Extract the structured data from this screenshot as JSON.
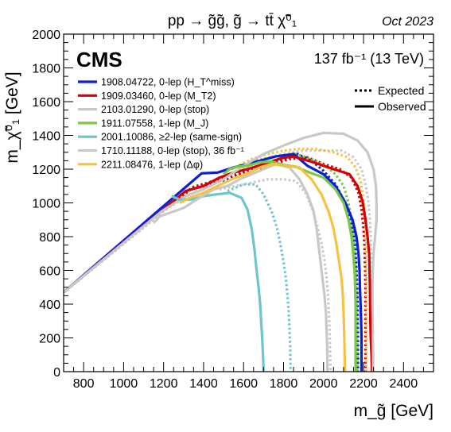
{
  "chart_data": {
    "type": "line",
    "title": "pp → g̃g̃,  g̃ → tt̄ χ̃⁰₁",
    "date_label": "Oct 2023",
    "experiment": "CMS",
    "luminosity": "137 fb⁻¹ (13 TeV)",
    "xlabel": "m_g̃ [GeV]",
    "ylabel": "m_χ̃⁰₁ [GeV]",
    "xlim": [
      700,
      2550
    ],
    "ylim": [
      0,
      2000
    ],
    "xticks": [
      800,
      1000,
      1200,
      1400,
      1600,
      1800,
      2000,
      2200,
      2400
    ],
    "yticks": [
      0,
      200,
      400,
      600,
      800,
      1000,
      1200,
      1400,
      1600,
      1800,
      2000
    ],
    "legend_style": [
      {
        "label": "Expected",
        "dash": "dotted"
      },
      {
        "label": "Observed",
        "dash": "solid"
      }
    ],
    "series": [
      {
        "name": "1908.04722, 0-lep (H_T^miss)",
        "color": "#0b1fd6",
        "observed": [
          [
            700,
            470
          ],
          [
            1390,
            1175
          ],
          [
            1470,
            1180
          ],
          [
            1550,
            1210
          ],
          [
            1650,
            1240
          ],
          [
            1760,
            1275
          ],
          [
            1850,
            1290
          ],
          [
            1920,
            1220
          ],
          [
            2000,
            1170
          ],
          [
            2060,
            1100
          ],
          [
            2110,
            1000
          ],
          [
            2145,
            900
          ],
          [
            2165,
            800
          ],
          [
            2175,
            700
          ],
          [
            2180,
            600
          ],
          [
            2182,
            500
          ],
          [
            2185,
            400
          ],
          [
            2188,
            300
          ],
          [
            2190,
            200
          ],
          [
            2190,
            100
          ],
          [
            2190,
            0
          ]
        ],
        "expected": [
          [
            700,
            470
          ],
          [
            1330,
            1080
          ],
          [
            1460,
            1120
          ],
          [
            1570,
            1160
          ],
          [
            1680,
            1220
          ],
          [
            1780,
            1250
          ],
          [
            1870,
            1290
          ],
          [
            1940,
            1250
          ],
          [
            2000,
            1190
          ],
          [
            2060,
            1110
          ],
          [
            2100,
            1020
          ],
          [
            2130,
            920
          ],
          [
            2150,
            820
          ],
          [
            2160,
            720
          ],
          [
            2165,
            600
          ],
          [
            2168,
            500
          ],
          [
            2170,
            400
          ],
          [
            2170,
            300
          ],
          [
            2172,
            200
          ],
          [
            2172,
            100
          ],
          [
            2172,
            0
          ]
        ]
      },
      {
        "name": "1909.03460, 0-lep (M_T2)",
        "color": "#d40000",
        "observed": [
          [
            700,
            470
          ],
          [
            1310,
            1070
          ],
          [
            1400,
            1100
          ],
          [
            1480,
            1150
          ],
          [
            1550,
            1180
          ],
          [
            1620,
            1200
          ],
          [
            1700,
            1230
          ],
          [
            1790,
            1265
          ],
          [
            1850,
            1275
          ],
          [
            1950,
            1240
          ],
          [
            2050,
            1200
          ],
          [
            2130,
            1170
          ],
          [
            2170,
            1100
          ],
          [
            2195,
            1010
          ],
          [
            2210,
            900
          ],
          [
            2220,
            800
          ],
          [
            2228,
            700
          ],
          [
            2230,
            600
          ],
          [
            2232,
            500
          ],
          [
            2233,
            400
          ],
          [
            2234,
            300
          ],
          [
            2236,
            200
          ],
          [
            2240,
            100
          ],
          [
            2242,
            0
          ]
        ],
        "expected": [
          [
            700,
            470
          ],
          [
            1350,
            1095
          ],
          [
            1480,
            1140
          ],
          [
            1600,
            1180
          ],
          [
            1720,
            1220
          ],
          [
            1830,
            1260
          ],
          [
            1920,
            1270
          ],
          [
            2000,
            1230
          ],
          [
            2080,
            1200
          ],
          [
            2140,
            1150
          ],
          [
            2175,
            1060
          ],
          [
            2190,
            960
          ],
          [
            2200,
            850
          ],
          [
            2205,
            740
          ],
          [
            2208,
            620
          ],
          [
            2210,
            500
          ],
          [
            2210,
            400
          ],
          [
            2210,
            300
          ],
          [
            2210,
            200
          ],
          [
            2210,
            100
          ],
          [
            2210,
            0
          ]
        ]
      },
      {
        "name": "2103.01290, 0-lep (stop)",
        "color": "#c8c8c8",
        "observed": [
          [
            700,
            470
          ],
          [
            1190,
            950
          ],
          [
            1310,
            1040
          ],
          [
            1400,
            1080
          ],
          [
            1500,
            1140
          ],
          [
            1600,
            1220
          ],
          [
            1700,
            1290
          ],
          [
            1800,
            1340
          ],
          [
            1900,
            1385
          ],
          [
            2000,
            1415
          ],
          [
            2100,
            1410
          ],
          [
            2170,
            1370
          ],
          [
            2220,
            1300
          ],
          [
            2250,
            1200
          ],
          [
            2262,
            1100
          ],
          [
            2265,
            1000
          ],
          [
            2265,
            900
          ],
          [
            2258,
            800
          ],
          [
            2250,
            700
          ],
          [
            2246,
            600
          ],
          [
            2245,
            500
          ],
          [
            2245,
            400
          ],
          [
            2246,
            300
          ],
          [
            2247,
            200
          ],
          [
            2248,
            100
          ],
          [
            2248,
            0
          ]
        ],
        "expected": [
          [
            700,
            470
          ],
          [
            1200,
            950
          ],
          [
            1330,
            1050
          ],
          [
            1450,
            1120
          ],
          [
            1570,
            1190
          ],
          [
            1690,
            1250
          ],
          [
            1790,
            1290
          ],
          [
            1900,
            1310
          ],
          [
            2000,
            1310
          ],
          [
            2090,
            1310
          ],
          [
            2150,
            1270
          ],
          [
            2190,
            1200
          ],
          [
            2212,
            1100
          ],
          [
            2225,
            1000
          ],
          [
            2232,
            900
          ],
          [
            2236,
            800
          ],
          [
            2238,
            700
          ],
          [
            2240,
            600
          ],
          [
            2240,
            500
          ],
          [
            2240,
            400
          ],
          [
            2240,
            300
          ],
          [
            2242,
            200
          ],
          [
            2242,
            100
          ],
          [
            2242,
            0
          ]
        ]
      },
      {
        "name": "1911.07558, 1-lep (M_J)",
        "color": "#7ac943",
        "observed": [
          [
            1500,
            1170
          ],
          [
            1530,
            1200
          ],
          [
            1570,
            1215
          ],
          [
            1620,
            1220
          ],
          [
            1680,
            1240
          ],
          [
            1740,
            1245
          ],
          [
            1800,
            1225
          ],
          [
            1860,
            1215
          ],
          [
            1930,
            1180
          ],
          [
            2000,
            1150
          ],
          [
            2060,
            1080
          ],
          [
            2100,
            1000
          ],
          [
            2125,
            900
          ],
          [
            2140,
            800
          ],
          [
            2148,
            700
          ],
          [
            2155,
            600
          ],
          [
            2158,
            500
          ],
          [
            2160,
            400
          ],
          [
            2160,
            300
          ],
          [
            2160,
            200
          ],
          [
            2160,
            100
          ],
          [
            2160,
            0
          ]
        ],
        "expected": [
          [
            1540,
            1200
          ],
          [
            1620,
            1245
          ],
          [
            1700,
            1260
          ],
          [
            1780,
            1280
          ],
          [
            1860,
            1290
          ],
          [
            1940,
            1260
          ],
          [
            2010,
            1220
          ],
          [
            2060,
            1170
          ],
          [
            2100,
            1100
          ],
          [
            2125,
            1000
          ],
          [
            2140,
            900
          ],
          [
            2150,
            800
          ],
          [
            2157,
            700
          ],
          [
            2162,
            600
          ],
          [
            2165,
            500
          ],
          [
            2167,
            400
          ],
          [
            2168,
            300
          ],
          [
            2168,
            200
          ],
          [
            2170,
            100
          ],
          [
            2170,
            0
          ]
        ]
      },
      {
        "name": "2001.10086, ≥2-lep (same-sign)",
        "color": "#6cc6cc",
        "observed": [
          [
            1240,
            1040
          ],
          [
            1280,
            1020
          ],
          [
            1340,
            1020
          ],
          [
            1400,
            1040
          ],
          [
            1460,
            1050
          ],
          [
            1530,
            1060
          ],
          [
            1590,
            1030
          ],
          [
            1620,
            960
          ],
          [
            1640,
            850
          ],
          [
            1655,
            720
          ],
          [
            1665,
            600
          ],
          [
            1675,
            500
          ],
          [
            1683,
            400
          ],
          [
            1688,
            300
          ],
          [
            1693,
            200
          ],
          [
            1697,
            100
          ],
          [
            1700,
            0
          ]
        ],
        "expected": [
          [
            1520,
            1070
          ],
          [
            1600,
            1110
          ],
          [
            1660,
            1110
          ],
          [
            1700,
            1050
          ],
          [
            1740,
            950
          ],
          [
            1768,
            850
          ],
          [
            1785,
            750
          ],
          [
            1800,
            650
          ],
          [
            1812,
            550
          ],
          [
            1820,
            450
          ],
          [
            1826,
            350
          ],
          [
            1830,
            250
          ],
          [
            1833,
            150
          ],
          [
            1835,
            0
          ]
        ]
      },
      {
        "name": "1710.11188, 0-lep (stop), 36 fb⁻¹",
        "color": "#c8c8c8",
        "observed": [
          [
            1150,
            880
          ],
          [
            1180,
            920
          ],
          [
            1240,
            945
          ],
          [
            1300,
            970
          ],
          [
            1380,
            1030
          ],
          [
            1450,
            1080
          ],
          [
            1520,
            1100
          ],
          [
            1580,
            1140
          ],
          [
            1640,
            1170
          ],
          [
            1700,
            1200
          ],
          [
            1760,
            1230
          ],
          [
            1830,
            1210
          ],
          [
            1880,
            1140
          ],
          [
            1920,
            1050
          ],
          [
            1950,
            950
          ],
          [
            1965,
            850
          ],
          [
            1975,
            750
          ],
          [
            1985,
            650
          ],
          [
            1995,
            550
          ],
          [
            2005,
            450
          ],
          [
            2012,
            350
          ],
          [
            2015,
            250
          ],
          [
            2018,
            150
          ],
          [
            2020,
            0
          ]
        ],
        "expected": [
          [
            1480,
            1080
          ],
          [
            1560,
            1100
          ],
          [
            1640,
            1120
          ],
          [
            1720,
            1140
          ],
          [
            1800,
            1140
          ],
          [
            1860,
            1130
          ],
          [
            1910,
            1060
          ],
          [
            1945,
            960
          ],
          [
            1970,
            860
          ],
          [
            1990,
            760
          ],
          [
            2005,
            660
          ],
          [
            2015,
            560
          ],
          [
            2022,
            460
          ],
          [
            2026,
            360
          ],
          [
            2030,
            260
          ],
          [
            2032,
            160
          ],
          [
            2035,
            0
          ]
        ]
      },
      {
        "name": "2211.08476, 1-lep (Δφ)",
        "color": "#f5c242",
        "observed": [
          [
            1280,
            1000
          ],
          [
            1330,
            1030
          ],
          [
            1400,
            1060
          ],
          [
            1470,
            1100
          ],
          [
            1540,
            1140
          ],
          [
            1610,
            1170
          ],
          [
            1680,
            1210
          ],
          [
            1740,
            1230
          ],
          [
            1810,
            1220
          ],
          [
            1880,
            1210
          ],
          [
            1940,
            1140
          ],
          [
            1990,
            1050
          ],
          [
            2025,
            950
          ],
          [
            2050,
            850
          ],
          [
            2065,
            750
          ],
          [
            2078,
            650
          ],
          [
            2090,
            550
          ],
          [
            2097,
            450
          ],
          [
            2100,
            350
          ],
          [
            2103,
            250
          ],
          [
            2105,
            150
          ],
          [
            2107,
            0
          ]
        ],
        "expected": [
          [
            1560,
            1210
          ],
          [
            1640,
            1260
          ],
          [
            1720,
            1290
          ],
          [
            1800,
            1310
          ],
          [
            1880,
            1320
          ],
          [
            1960,
            1320
          ],
          [
            2050,
            1300
          ],
          [
            2120,
            1270
          ],
          [
            2160,
            1210
          ],
          [
            2185,
            1130
          ],
          [
            2198,
            1040
          ],
          [
            2205,
            950
          ],
          [
            2210,
            850
          ],
          [
            2212,
            750
          ],
          [
            2213,
            650
          ],
          [
            2214,
            550
          ],
          [
            2214,
            450
          ],
          [
            2214,
            350
          ],
          [
            2214,
            250
          ],
          [
            2214,
            150
          ],
          [
            2214,
            0
          ]
        ]
      }
    ]
  }
}
